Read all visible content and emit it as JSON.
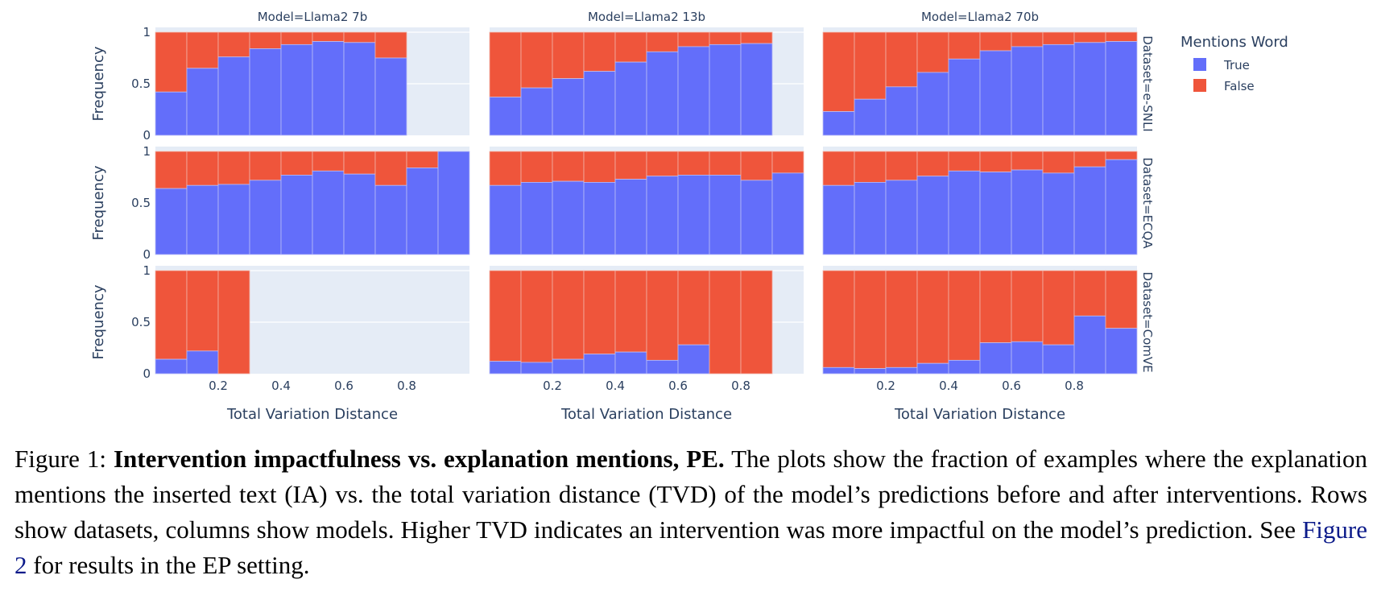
{
  "chart_data": {
    "type": "bar",
    "subtype": "stacked-normalized-histogram-facets",
    "xlabel": "Total Variation Distance",
    "ylabel": "Frequency",
    "xlim": [
      0,
      1
    ],
    "ylim": [
      0,
      1
    ],
    "xticks": [
      "0.2",
      "0.4",
      "0.6",
      "0.8"
    ],
    "yticks": [
      "0",
      "0.5",
      "1"
    ],
    "bin_width": 0.1,
    "grid": true,
    "legend": {
      "title": "Mentions Word",
      "placement": "top-right",
      "entries": [
        {
          "name": "True",
          "color": "#636efa"
        },
        {
          "name": "False",
          "color": "#ef553b"
        }
      ]
    },
    "columns": [
      "Model=Llama2 7b",
      "Model=Llama2 13b",
      "Model=Llama2 70b"
    ],
    "rows": [
      "Dataset=e-SNLI",
      "Dataset=ECQA",
      "Dataset=ComVE"
    ],
    "panels": [
      {
        "row": 0,
        "col": 0,
        "bins_true_fraction": [
          0.42,
          0.65,
          0.76,
          0.84,
          0.88,
          0.91,
          0.9,
          0.75
        ]
      },
      {
        "row": 0,
        "col": 1,
        "bins_true_fraction": [
          0.37,
          0.46,
          0.55,
          0.62,
          0.71,
          0.81,
          0.86,
          0.88,
          0.89
        ]
      },
      {
        "row": 0,
        "col": 2,
        "bins_true_fraction": [
          0.23,
          0.35,
          0.47,
          0.61,
          0.74,
          0.82,
          0.86,
          0.88,
          0.9,
          0.91
        ]
      },
      {
        "row": 1,
        "col": 0,
        "bins_true_fraction": [
          0.64,
          0.67,
          0.68,
          0.72,
          0.77,
          0.81,
          0.78,
          0.67,
          0.84,
          1.0
        ]
      },
      {
        "row": 1,
        "col": 1,
        "bins_true_fraction": [
          0.67,
          0.7,
          0.71,
          0.7,
          0.73,
          0.76,
          0.77,
          0.77,
          0.72,
          0.79
        ]
      },
      {
        "row": 1,
        "col": 2,
        "bins_true_fraction": [
          0.67,
          0.7,
          0.72,
          0.76,
          0.81,
          0.8,
          0.82,
          0.79,
          0.85,
          0.92
        ]
      },
      {
        "row": 2,
        "col": 0,
        "bins_true_fraction": [
          0.14,
          0.22,
          0.0
        ]
      },
      {
        "row": 2,
        "col": 1,
        "bins_true_fraction": [
          0.12,
          0.11,
          0.14,
          0.19,
          0.21,
          0.13,
          0.28,
          0.0,
          0.0
        ]
      },
      {
        "row": 2,
        "col": 2,
        "bins_true_fraction": [
          0.06,
          0.05,
          0.06,
          0.1,
          0.13,
          0.3,
          0.31,
          0.28,
          0.56,
          0.44
        ]
      }
    ]
  },
  "caption": {
    "label": "Figure 1: ",
    "bold": "Intervention impactfulness vs. explanation mentions, PE.",
    "text1": " The plots show the fraction of examples where the explanation mentions the inserted text (IA) vs. the total variation distance (TVD) of the model’s predictions before and after interventions. Rows show datasets, columns show models. Higher TVD indicates an intervention was more impactful on the model’s prediction. See ",
    "link": "Figure 2",
    "text2": " for results in the EP setting."
  },
  "colors": {
    "plot_bg": "#e5ecf6",
    "grid": "#ffffff",
    "true": "#636efa",
    "false": "#ef553b",
    "text": "#2a3f5f"
  }
}
